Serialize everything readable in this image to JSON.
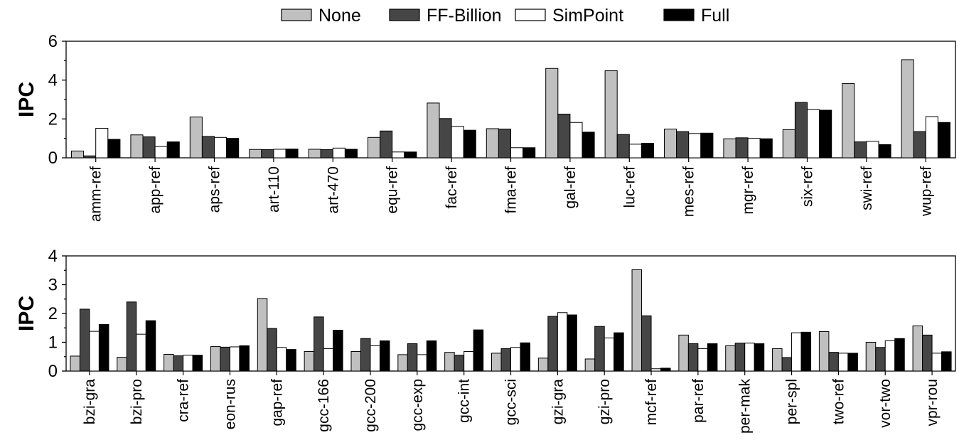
{
  "chart_data": [
    {
      "type": "bar",
      "ylabel": "IPC",
      "ylim": [
        0,
        6
      ],
      "yticks": [
        0,
        2,
        4,
        6
      ],
      "grid": false,
      "legend": "top-center",
      "categories": [
        "amm-ref",
        "app-ref",
        "aps-ref",
        "art-110",
        "art-470",
        "equ-ref",
        "fac-ref",
        "fma-ref",
        "gal-ref",
        "luc-ref",
        "mes-ref",
        "mgr-ref",
        "six-ref",
        "swi-ref",
        "wup-ref"
      ],
      "series": [
        {
          "name": "None",
          "color": "#c0c0c0",
          "values": [
            0.35,
            1.18,
            2.1,
            0.43,
            0.44,
            1.05,
            2.82,
            1.5,
            4.6,
            4.48,
            1.48,
            0.98,
            1.45,
            3.82,
            5.05
          ]
        },
        {
          "name": "FF-Billion",
          "color": "#464646",
          "values": [
            0.1,
            1.08,
            1.1,
            0.42,
            0.42,
            1.38,
            2.02,
            1.48,
            2.25,
            1.2,
            1.35,
            1.03,
            2.85,
            0.82,
            1.35
          ]
        },
        {
          "name": "SimPoint",
          "color": "#ffffff",
          "values": [
            1.52,
            0.58,
            1.05,
            0.44,
            0.5,
            0.3,
            1.62,
            0.52,
            1.82,
            0.7,
            1.25,
            1.0,
            2.48,
            0.85,
            2.12
          ]
        },
        {
          "name": "Full",
          "color": "#000000",
          "values": [
            0.95,
            0.82,
            1.0,
            0.45,
            0.44,
            0.3,
            1.42,
            0.52,
            1.32,
            0.75,
            1.27,
            0.98,
            2.45,
            0.68,
            1.82
          ]
        }
      ]
    },
    {
      "type": "bar",
      "ylabel": "IPC",
      "ylim": [
        0,
        4
      ],
      "yticks": [
        0,
        1,
        2,
        3,
        4
      ],
      "grid": false,
      "categories": [
        "bzi-gra",
        "bzi-pro",
        "cra-ref",
        "eon-rus",
        "gap-ref",
        "gcc-166",
        "gcc-200",
        "gcc-exp",
        "gcc-int",
        "gcc-sci",
        "gzi-gra",
        "gzi-pro",
        "mcf-ref",
        "par-ref",
        "per-mak",
        "per-spl",
        "two-ref",
        "vor-two",
        "vpr-rou"
      ],
      "series": [
        {
          "name": "None",
          "color": "#c0c0c0",
          "values": [
            0.52,
            0.48,
            0.58,
            0.85,
            2.52,
            0.68,
            0.68,
            0.57,
            0.65,
            0.62,
            0.45,
            0.42,
            3.52,
            1.25,
            0.88,
            0.78,
            1.37,
            1.0,
            1.57
          ]
        },
        {
          "name": "FF-Billion",
          "color": "#464646",
          "values": [
            2.15,
            2.4,
            0.53,
            0.83,
            1.48,
            1.88,
            1.13,
            0.95,
            0.55,
            0.78,
            1.9,
            1.55,
            1.92,
            0.95,
            0.97,
            0.47,
            0.65,
            0.82,
            1.25
          ]
        },
        {
          "name": "SimPoint",
          "color": "#ffffff",
          "values": [
            1.38,
            1.28,
            0.55,
            0.84,
            0.82,
            0.78,
            0.88,
            0.57,
            0.68,
            0.82,
            2.03,
            1.15,
            0.08,
            0.78,
            0.97,
            1.33,
            0.62,
            1.05,
            0.62
          ]
        },
        {
          "name": "Full",
          "color": "#000000",
          "values": [
            1.62,
            1.75,
            0.55,
            0.88,
            0.75,
            1.42,
            1.05,
            1.05,
            1.43,
            0.98,
            1.95,
            1.33,
            0.1,
            0.95,
            0.95,
            1.35,
            0.62,
            1.13,
            0.67
          ]
        }
      ]
    }
  ]
}
